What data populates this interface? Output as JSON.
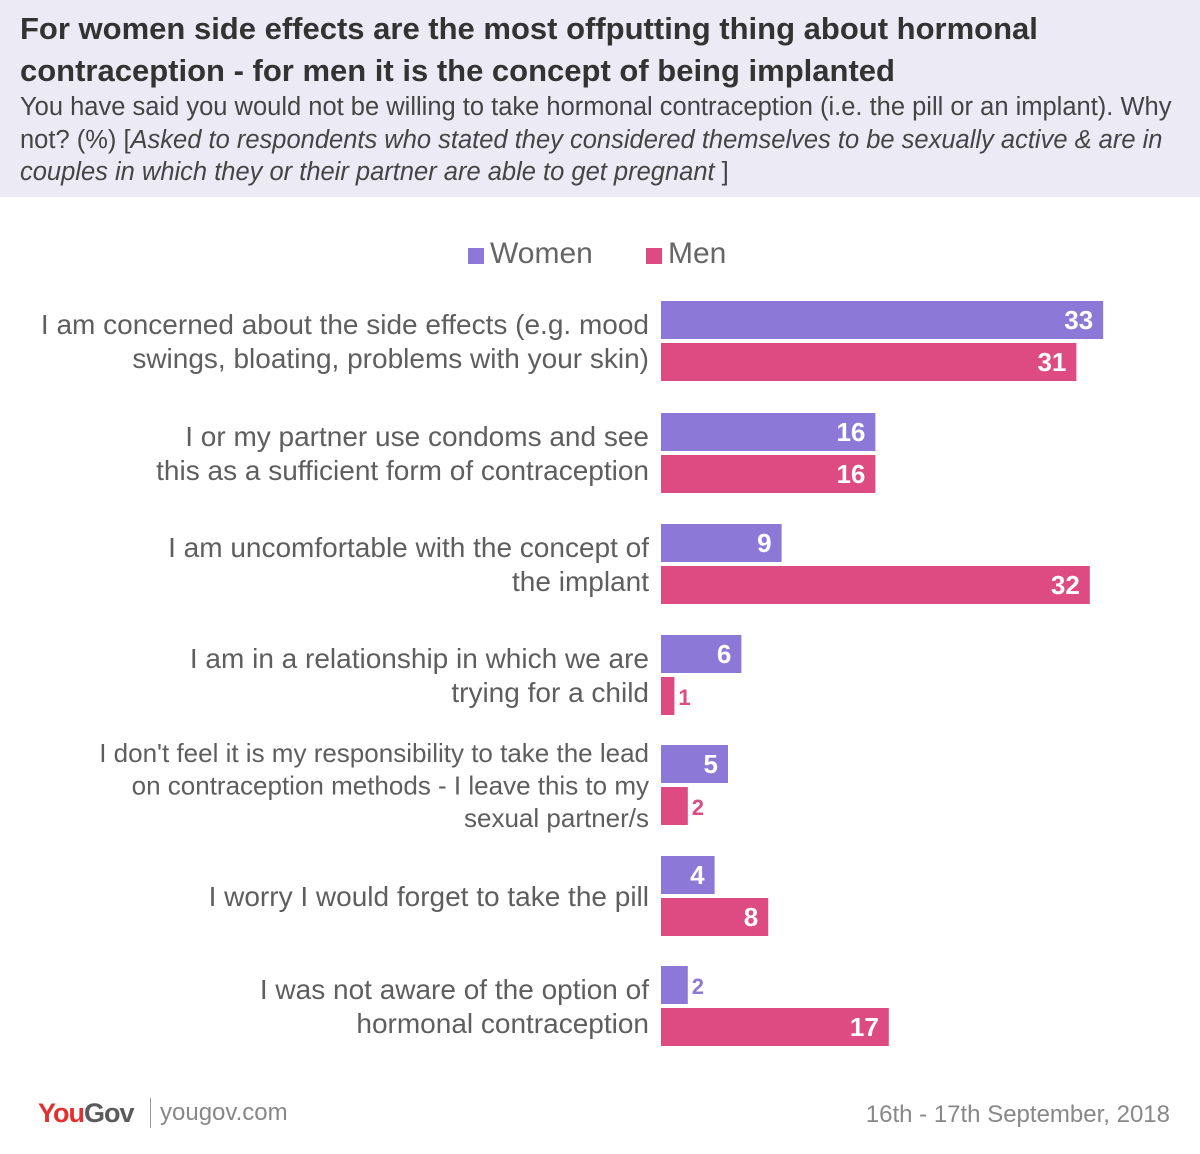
{
  "header": {
    "title": "For women side effects are the most offputting thing about hormonal contraception - for men it is the concept of being implanted",
    "subtitle_plain": "You have said you would not be willing  to take hormonal contraception (i.e. the pill or an implant). Why not? (%) [",
    "subtitle_italic": "Asked to respondents who stated they considered themselves to be sexually active & are in couples in which they or their partner are able to get pregnant",
    "subtitle_end": " ]"
  },
  "colors": {
    "women": "#8c78d6",
    "men": "#de4a82",
    "header_bg": "#ecebf5"
  },
  "chart_data": {
    "type": "bar",
    "orientation": "horizontal",
    "title": "For women side effects are the most offputting thing about hormonal contraception - for men it is the concept of being implanted",
    "categories": [
      [
        "I am concerned about the side effects (e.g. mood",
        "swings, bloating, problems with your skin)"
      ],
      [
        "I or my partner use condoms and see",
        "this as a sufficient form of contraception"
      ],
      [
        "I am uncomfortable with the concept of",
        "the implant"
      ],
      [
        "I am in a relationship in which we are",
        "trying for a child"
      ],
      [
        "I don't feel it is my responsibility to take the lead",
        "on contraception methods - I leave this to my",
        "sexual partner/s"
      ],
      [
        "I worry I would forget to take the pill"
      ],
      [
        "I was not aware of the option of",
        "hormonal contraception"
      ]
    ],
    "series": [
      {
        "name": "Women",
        "values": [
          33,
          16,
          9,
          6,
          5,
          4,
          2
        ]
      },
      {
        "name": "Men",
        "values": [
          31,
          16,
          32,
          1,
          2,
          8,
          17
        ]
      }
    ],
    "xlim": [
      0,
      35
    ],
    "grid": false,
    "legend_position": "top-center"
  },
  "footer": {
    "logo_you": "You",
    "logo_gov": "Gov",
    "url": "yougov.com",
    "date": "16th - 17th September, 2018"
  }
}
